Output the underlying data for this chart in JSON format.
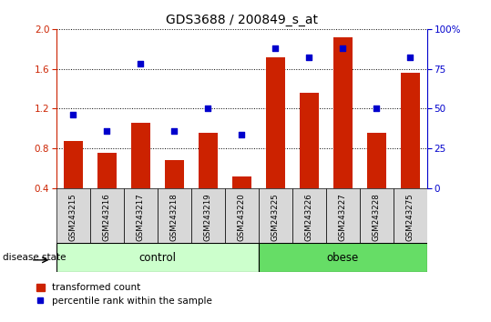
{
  "title": "GDS3688 / 200849_s_at",
  "samples": [
    "GSM243215",
    "GSM243216",
    "GSM243217",
    "GSM243218",
    "GSM243219",
    "GSM243220",
    "GSM243225",
    "GSM243226",
    "GSM243227",
    "GSM243228",
    "GSM243275"
  ],
  "bar_values": [
    0.88,
    0.76,
    1.06,
    0.68,
    0.96,
    0.52,
    1.72,
    1.36,
    1.92,
    0.96,
    1.56
  ],
  "dot_percentiles": [
    46,
    36,
    78,
    36,
    50,
    34,
    88,
    82,
    88,
    50,
    82
  ],
  "control_count": 6,
  "bar_color": "#cc2200",
  "dot_color": "#0000cc",
  "ylim_left": [
    0.4,
    2.0
  ],
  "ylim_right": [
    0,
    100
  ],
  "yticks_left": [
    0.4,
    0.8,
    1.2,
    1.6,
    2.0
  ],
  "yticks_right": [
    0,
    25,
    50,
    75,
    100
  ],
  "ctrl_color": "#ccffcc",
  "obese_color": "#66dd66",
  "sample_bg_color": "#d8d8d8",
  "group_label": "disease state",
  "legend_bar": "transformed count",
  "legend_dot": "percentile rank within the sample"
}
